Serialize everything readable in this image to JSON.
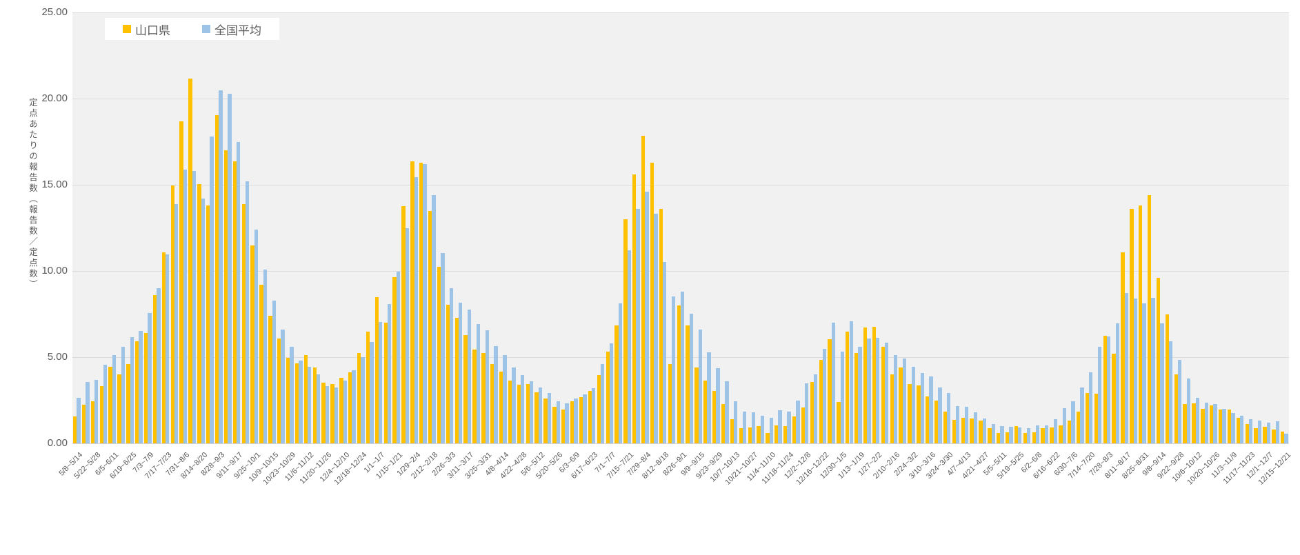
{
  "legend": {
    "items": [
      {
        "label": "山口県",
        "color": "#FFC000"
      },
      {
        "label": "全国平均",
        "color": "#9DC3E6"
      }
    ]
  },
  "y_axis": {
    "title": "定点あたりの報告数（報告数／定点数）",
    "ticks": [
      "0.00",
      "5.00",
      "10.00",
      "15.00",
      "20.00",
      "25.00"
    ]
  },
  "chart_data": {
    "type": "bar",
    "title": "",
    "ylabel": "定点あたりの報告数（報告数／定点数）",
    "ylim": [
      0,
      25
    ],
    "grid": true,
    "legend_position": "top-left",
    "plot_bg": "#F1F1F1",
    "gridline_color": "#DBDBDB",
    "text_color": "#595959",
    "weeks_per_tick_label": 2,
    "x_tick_labels": [
      "5/8~5/14",
      "5/22~5/28",
      "6/5~6/11",
      "6/19~6/25",
      "7/3~7/9",
      "7/17~7/23",
      "7/31~8/6",
      "8/14~8/20",
      "8/28~9/3",
      "9/11~9/17",
      "9/25~10/1",
      "10/9~10/15",
      "10/23~10/29",
      "11/6~11/12",
      "11/20~11/26",
      "12/4~12/10",
      "12/18~12/24",
      "1/1~1/7",
      "1/15~1/21",
      "1/29~2/4",
      "2/12~2/18",
      "2/26~3/3",
      "3/11~3/17",
      "3/25~3/31",
      "4/8~4/14",
      "4/22~4/28",
      "5/6~5/12",
      "5/20~5/26",
      "6/3~6/9",
      "6/17~6/23",
      "7/1~7/7",
      "7/15~7/21",
      "7/29~8/4",
      "8/12~8/18",
      "8/26~9/1",
      "9/9~9/15",
      "9/23~9/29",
      "10/7~10/13",
      "10/21~10/27",
      "11/4~11/10",
      "11/18~11/24",
      "12/2~12/8",
      "12/16~12/22",
      "12/30~1/5",
      "1/13~1/19",
      "1/27~2/2",
      "2/10~2/16",
      "2/24~3/2",
      "3/10~3/16",
      "3/24~3/30",
      "4/7~4/13",
      "4/21~4/27",
      "5/5~5/11",
      "5/19~5/25",
      "6/2~6/8",
      "6/16~6/22",
      "6/30~7/6",
      "7/14~7/20",
      "7/28~8/3",
      "8/11~8/17",
      "8/25~8/31",
      "9/8~9/14",
      "9/22~9/28",
      "10/6~10/12",
      "10/20~10/26",
      "11/3~11/9",
      "11/17~11/23",
      "12/1~12/7",
      "12/15~12/21"
    ],
    "series": [
      {
        "name": "山口県",
        "color": "#FFC000",
        "values": [
          1.56,
          2.23,
          2.45,
          3.32,
          4.43,
          3.99,
          4.61,
          5.92,
          6.41,
          8.6,
          11.1,
          14.95,
          18.7,
          21.18,
          15.05,
          13.8,
          19.04,
          17.0,
          16.35,
          13.9,
          11.5,
          9.2,
          7.4,
          6.1,
          4.95,
          4.65,
          5.12,
          4.39,
          3.52,
          3.45,
          3.79,
          4.12,
          5.25,
          6.5,
          8.5,
          6.99,
          9.65,
          13.75,
          16.38,
          16.3,
          13.5,
          10.25,
          8.05,
          7.3,
          6.3,
          5.45,
          5.25,
          4.59,
          4.15,
          3.65,
          3.39,
          3.45,
          2.95,
          2.59,
          2.12,
          1.95,
          2.45,
          2.69,
          3.05,
          3.95,
          5.32,
          6.85,
          12.99,
          15.59,
          17.85,
          16.28,
          13.59,
          4.59,
          7.99,
          6.85,
          4.39,
          3.65,
          3.03,
          2.28,
          1.39,
          0.88,
          0.91,
          0.99,
          0.59,
          1.05,
          1.01,
          1.56,
          2.08,
          3.56,
          4.85,
          6.03,
          2.39,
          6.48,
          5.25,
          6.72,
          6.76,
          5.61,
          3.99,
          4.41,
          3.43,
          3.36,
          2.72,
          2.48,
          1.85,
          1.36,
          1.48,
          1.43,
          1.32,
          0.89,
          0.59,
          0.65,
          0.99,
          0.59,
          0.63,
          0.88,
          0.92,
          1.03,
          1.32,
          1.85,
          2.92,
          2.89,
          6.23,
          5.19,
          11.1,
          13.6,
          13.81,
          14.39,
          9.59,
          7.48,
          3.99,
          2.28,
          2.32,
          2.01,
          2.19,
          1.96,
          1.96,
          1.48,
          1.12,
          0.89,
          0.95,
          0.81,
          0.68
        ]
      },
      {
        "name": "全国平均",
        "color": "#9DC3E6",
        "values": [
          2.64,
          3.56,
          3.68,
          4.57,
          5.12,
          5.61,
          6.15,
          6.52,
          7.58,
          9.0,
          10.95,
          13.9,
          15.9,
          15.8,
          14.2,
          17.8,
          20.5,
          20.3,
          17.5,
          15.2,
          12.4,
          10.1,
          8.3,
          6.6,
          5.59,
          4.79,
          4.45,
          3.99,
          3.32,
          3.25,
          3.65,
          4.25,
          4.99,
          5.9,
          7.05,
          8.1,
          9.96,
          12.5,
          15.45,
          16.2,
          14.4,
          11.05,
          8.99,
          8.15,
          7.75,
          6.92,
          6.55,
          5.65,
          5.12,
          4.39,
          3.95,
          3.59,
          3.25,
          2.92,
          2.45,
          2.32,
          2.59,
          2.85,
          3.19,
          4.59,
          5.79,
          8.12,
          11.19,
          13.59,
          14.59,
          13.32,
          10.52,
          8.52,
          8.81,
          7.52,
          6.59,
          5.3,
          4.36,
          3.61,
          2.43,
          1.85,
          1.79,
          1.61,
          1.48,
          1.92,
          1.83,
          2.49,
          3.48,
          3.99,
          5.48,
          7.01,
          5.32,
          7.08,
          5.59,
          6.09,
          6.12,
          5.85,
          5.12,
          4.92,
          4.45,
          4.08,
          3.89,
          3.25,
          2.92,
          2.16,
          2.12,
          1.79,
          1.43,
          1.12,
          1.01,
          0.95,
          0.92,
          0.89,
          1.03,
          1.05,
          1.39,
          2.03,
          2.45,
          3.25,
          4.12,
          5.59,
          6.19,
          6.95,
          8.72,
          8.39,
          8.12,
          8.45,
          6.95,
          5.92,
          4.85,
          3.75,
          2.65,
          2.35,
          2.28,
          2.01,
          1.75,
          1.61,
          1.39,
          1.32,
          1.21,
          1.29,
          0.55
        ]
      }
    ]
  }
}
